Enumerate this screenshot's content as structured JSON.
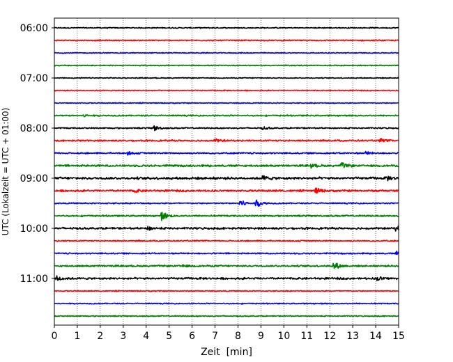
{
  "chart_data": {
    "type": "line",
    "title": "",
    "xlabel": "Zeit  [min]",
    "ylabel": "UTC (Lokalzeit = UTC + 01:00)",
    "xlim": [
      0,
      15
    ],
    "x_ticks": [
      "0",
      "1",
      "2",
      "3",
      "4",
      "5",
      "6",
      "7",
      "8",
      "9",
      "10",
      "11",
      "12",
      "13",
      "14",
      "15"
    ],
    "y_ticks": [
      "06:00",
      "07:00",
      "08:00",
      "09:00",
      "10:00",
      "11:00"
    ],
    "grid": "vertical dotted",
    "colors": [
      "#000000",
      "#ff0000",
      "#0000ff",
      "#008000"
    ],
    "series": [
      {
        "start": "06:00",
        "color": "#000000",
        "amp": 0.25,
        "events": []
      },
      {
        "start": "06:15",
        "color": "#ff0000",
        "amp": 0.25,
        "events": []
      },
      {
        "start": "06:30",
        "color": "#0000ff",
        "amp": 0.22,
        "events": []
      },
      {
        "start": "06:45",
        "color": "#008000",
        "amp": 0.22,
        "events": []
      },
      {
        "start": "07:00",
        "color": "#000000",
        "amp": 0.22,
        "events": []
      },
      {
        "start": "07:15",
        "color": "#ff0000",
        "amp": 0.22,
        "events": []
      },
      {
        "start": "07:30",
        "color": "#0000ff",
        "amp": 0.22,
        "events": []
      },
      {
        "start": "07:45",
        "color": "#008000",
        "amp": 0.3,
        "events": [
          {
            "t": 1.3,
            "a": 0.6
          }
        ]
      },
      {
        "start": "08:00",
        "color": "#000000",
        "amp": 0.3,
        "events": [
          {
            "t": 4.35,
            "a": 1.4
          },
          {
            "t": 9.1,
            "a": 0.7
          }
        ]
      },
      {
        "start": "08:15",
        "color": "#ff0000",
        "amp": 0.35,
        "events": [
          {
            "t": 7.0,
            "a": 0.9
          },
          {
            "t": 14.2,
            "a": 1.0
          }
        ]
      },
      {
        "start": "08:30",
        "color": "#0000ff",
        "amp": 0.35,
        "events": [
          {
            "t": 3.2,
            "a": 0.8
          },
          {
            "t": 13.6,
            "a": 0.7
          }
        ]
      },
      {
        "start": "08:45",
        "color": "#008000",
        "amp": 0.45,
        "events": [
          {
            "t": 12.5,
            "a": 1.6
          },
          {
            "t": 11.2,
            "a": 0.9
          }
        ]
      },
      {
        "start": "09:00",
        "color": "#000000",
        "amp": 0.55,
        "events": [
          {
            "t": 9.1,
            "a": 1.1
          },
          {
            "t": 14.5,
            "a": 1.0
          }
        ]
      },
      {
        "start": "09:15",
        "color": "#ff0000",
        "amp": 0.45,
        "events": [
          {
            "t": 11.4,
            "a": 1.4
          },
          {
            "t": 3.5,
            "a": 0.9
          }
        ]
      },
      {
        "start": "09:30",
        "color": "#0000ff",
        "amp": 0.3,
        "events": [
          {
            "t": 8.1,
            "a": 2.0
          },
          {
            "t": 8.8,
            "a": 2.1
          }
        ]
      },
      {
        "start": "09:45",
        "color": "#008000",
        "amp": 0.35,
        "events": [
          {
            "t": 4.7,
            "a": 2.2
          }
        ]
      },
      {
        "start": "10:00",
        "color": "#000000",
        "amp": 0.45,
        "events": [
          {
            "t": 4.1,
            "a": 0.9
          },
          {
            "t": 14.9,
            "a": 1.2
          }
        ]
      },
      {
        "start": "10:15",
        "color": "#ff0000",
        "amp": 0.3,
        "events": []
      },
      {
        "start": "10:30",
        "color": "#0000ff",
        "amp": 0.3,
        "events": [
          {
            "t": 14.9,
            "a": 1.0
          }
        ]
      },
      {
        "start": "10:45",
        "color": "#008000",
        "amp": 0.4,
        "events": [
          {
            "t": 12.2,
            "a": 2.0
          },
          {
            "t": 5.5,
            "a": 0.8
          }
        ]
      },
      {
        "start": "11:00",
        "color": "#000000",
        "amp": 0.45,
        "events": [
          {
            "t": 0.1,
            "a": 1.6
          },
          {
            "t": 14.1,
            "a": 1.0
          }
        ]
      },
      {
        "start": "11:15",
        "color": "#ff0000",
        "amp": 0.25,
        "events": []
      },
      {
        "start": "11:30",
        "color": "#0000ff",
        "amp": 0.25,
        "events": []
      },
      {
        "start": "11:45",
        "color": "#008000",
        "amp": 0.25,
        "events": []
      }
    ]
  }
}
